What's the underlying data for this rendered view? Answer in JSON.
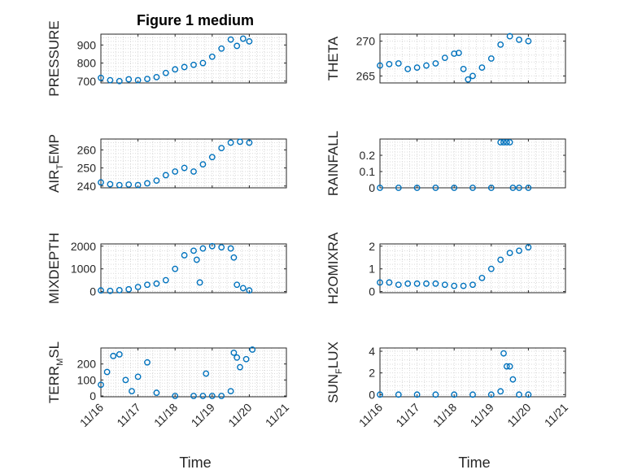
{
  "title": "Figure 1 medium",
  "x_label": "Time",
  "chart_data": {
    "type": "scatter",
    "title": "Figure 1 medium",
    "xlabel": "Time",
    "xlim": [
      "11/16",
      "11/21"
    ],
    "x_ticks": [
      "11/16",
      "11/17",
      "11/18",
      "11/19",
      "11/20",
      "11/21"
    ],
    "marker": "circle",
    "color": "#0072bd",
    "grid": "on",
    "panels": [
      {
        "ylabel": "PRESSURE",
        "ylim": [
          690,
          960
        ],
        "y_ticks": [
          700,
          800,
          900
        ],
        "x": [
          "11/16 00:00",
          "11/16 06:00",
          "11/16 12:00",
          "11/16 18:00",
          "11/17 00:00",
          "11/17 06:00",
          "11/17 12:00",
          "11/17 18:00",
          "11/18 00:00",
          "11/18 06:00",
          "11/18 12:00",
          "11/18 18:00",
          "11/19 00:00",
          "11/19 06:00",
          "11/19 12:00",
          "11/19 16:00",
          "11/19 20:00",
          "11/20 00:00"
        ],
        "values": [
          718,
          705,
          700,
          710,
          705,
          712,
          722,
          745,
          765,
          778,
          790,
          800,
          835,
          880,
          930,
          895,
          935,
          920
        ]
      },
      {
        "ylabel": "THETA",
        "ylim": [
          264,
          271
        ],
        "y_ticks": [
          265,
          270
        ],
        "x": [
          "11/16 00:00",
          "11/16 06:00",
          "11/16 12:00",
          "11/16 18:00",
          "11/17 00:00",
          "11/17 06:00",
          "11/17 12:00",
          "11/17 18:00",
          "11/18 00:00",
          "11/18 03:00",
          "11/18 06:00",
          "11/18 09:00",
          "11/18 12:00",
          "11/18 18:00",
          "11/19 00:00",
          "11/19 06:00",
          "11/19 12:00",
          "11/19 18:00",
          "11/20 00:00"
        ],
        "values": [
          266.5,
          266.7,
          266.8,
          266.0,
          266.2,
          266.5,
          266.8,
          267.6,
          268.2,
          268.3,
          266.0,
          264.5,
          265.0,
          266.2,
          267.5,
          269.5,
          270.7,
          270.2,
          270.0
        ]
      },
      {
        "ylabel": "AIR_TEMP",
        "ylim": [
          239,
          266
        ],
        "y_ticks": [
          240,
          250,
          260
        ],
        "x": [
          "11/16 00:00",
          "11/16 06:00",
          "11/16 12:00",
          "11/16 18:00",
          "11/17 00:00",
          "11/17 06:00",
          "11/17 12:00",
          "11/17 18:00",
          "11/18 00:00",
          "11/18 06:00",
          "11/18 12:00",
          "11/18 18:00",
          "11/19 00:00",
          "11/19 06:00",
          "11/19 12:00",
          "11/19 18:00",
          "11/20 00:00"
        ],
        "values": [
          242,
          241,
          240.5,
          240.8,
          240.5,
          241.5,
          243,
          246,
          248,
          250,
          248,
          252,
          256,
          261,
          264,
          264.5,
          264
        ]
      },
      {
        "ylabel": "RAINFALL",
        "ylim": [
          0,
          0.3
        ],
        "y_ticks": [
          0,
          0.1,
          0.2
        ],
        "x": [
          "11/16 00:00",
          "11/16 12:00",
          "11/17 00:00",
          "11/17 12:00",
          "11/18 00:00",
          "11/18 12:00",
          "11/19 00:00",
          "11/19 06:00",
          "11/19 08:00",
          "11/19 10:00",
          "11/19 12:00",
          "11/19 14:00",
          "11/19 18:00",
          "11/20 00:00"
        ],
        "values": [
          0,
          0,
          0,
          0,
          0,
          0,
          0,
          0.28,
          0.28,
          0.28,
          0.28,
          0,
          0,
          0
        ]
      },
      {
        "ylabel": "MIXDEPTH",
        "ylim": [
          -50,
          2100
        ],
        "y_ticks": [
          0,
          1000,
          2000
        ],
        "x": [
          "11/16 00:00",
          "11/16 06:00",
          "11/16 12:00",
          "11/16 18:00",
          "11/17 00:00",
          "11/17 06:00",
          "11/17 12:00",
          "11/17 18:00",
          "11/18 00:00",
          "11/18 06:00",
          "11/18 12:00",
          "11/18 14:00",
          "11/18 16:00",
          "11/18 18:00",
          "11/19 00:00",
          "11/19 06:00",
          "11/19 12:00",
          "11/19 14:00",
          "11/19 16:00",
          "11/19 20:00",
          "11/20 00:00"
        ],
        "values": [
          50,
          30,
          60,
          100,
          200,
          300,
          350,
          500,
          1000,
          1600,
          1800,
          1400,
          400,
          1900,
          2000,
          1950,
          1900,
          1500,
          300,
          150,
          50
        ]
      },
      {
        "ylabel": "H2OMIXRA",
        "ylim": [
          -0.05,
          2.1
        ],
        "y_ticks": [
          0,
          1,
          2
        ],
        "x": [
          "11/16 00:00",
          "11/16 06:00",
          "11/16 12:00",
          "11/16 18:00",
          "11/17 00:00",
          "11/17 06:00",
          "11/17 12:00",
          "11/17 18:00",
          "11/18 00:00",
          "11/18 06:00",
          "11/18 12:00",
          "11/18 18:00",
          "11/19 00:00",
          "11/19 06:00",
          "11/19 12:00",
          "11/19 18:00",
          "11/20 00:00"
        ],
        "values": [
          0.4,
          0.4,
          0.3,
          0.35,
          0.35,
          0.35,
          0.35,
          0.3,
          0.25,
          0.25,
          0.3,
          0.6,
          1.0,
          1.4,
          1.7,
          1.8,
          1.95
        ]
      },
      {
        "ylabel": "TERR_MSL",
        "ylim": [
          -5,
          300
        ],
        "y_ticks": [
          0,
          100,
          200
        ],
        "x": [
          "11/16 00:00",
          "11/16 04:00",
          "11/16 08:00",
          "11/16 12:00",
          "11/16 16:00",
          "11/16 20:00",
          "11/17 00:00",
          "11/17 06:00",
          "11/17 12:00",
          "11/18 00:00",
          "11/18 12:00",
          "11/18 18:00",
          "11/18 20:00",
          "11/19 00:00",
          "11/19 06:00",
          "11/19 12:00",
          "11/19 14:00",
          "11/19 16:00",
          "11/19 18:00",
          "11/19 22:00",
          "11/20 02:00"
        ],
        "values": [
          70,
          150,
          250,
          260,
          100,
          30,
          120,
          210,
          20,
          0,
          0,
          0,
          140,
          0,
          0,
          30,
          270,
          240,
          180,
          230,
          290
        ]
      },
      {
        "ylabel": "SUN_FLUX",
        "ylim": [
          -0.2,
          4.3
        ],
        "y_ticks": [
          0,
          2,
          4
        ],
        "x": [
          "11/16 00:00",
          "11/16 12:00",
          "11/17 00:00",
          "11/17 12:00",
          "11/18 00:00",
          "11/18 12:00",
          "11/19 00:00",
          "11/19 06:00",
          "11/19 08:00",
          "11/19 10:00",
          "11/19 12:00",
          "11/19 14:00",
          "11/19 18:00",
          "11/20 00:00"
        ],
        "values": [
          0,
          0,
          0,
          0,
          0,
          0,
          0,
          0.3,
          3.8,
          2.6,
          2.6,
          1.4,
          0,
          0
        ]
      }
    ]
  }
}
